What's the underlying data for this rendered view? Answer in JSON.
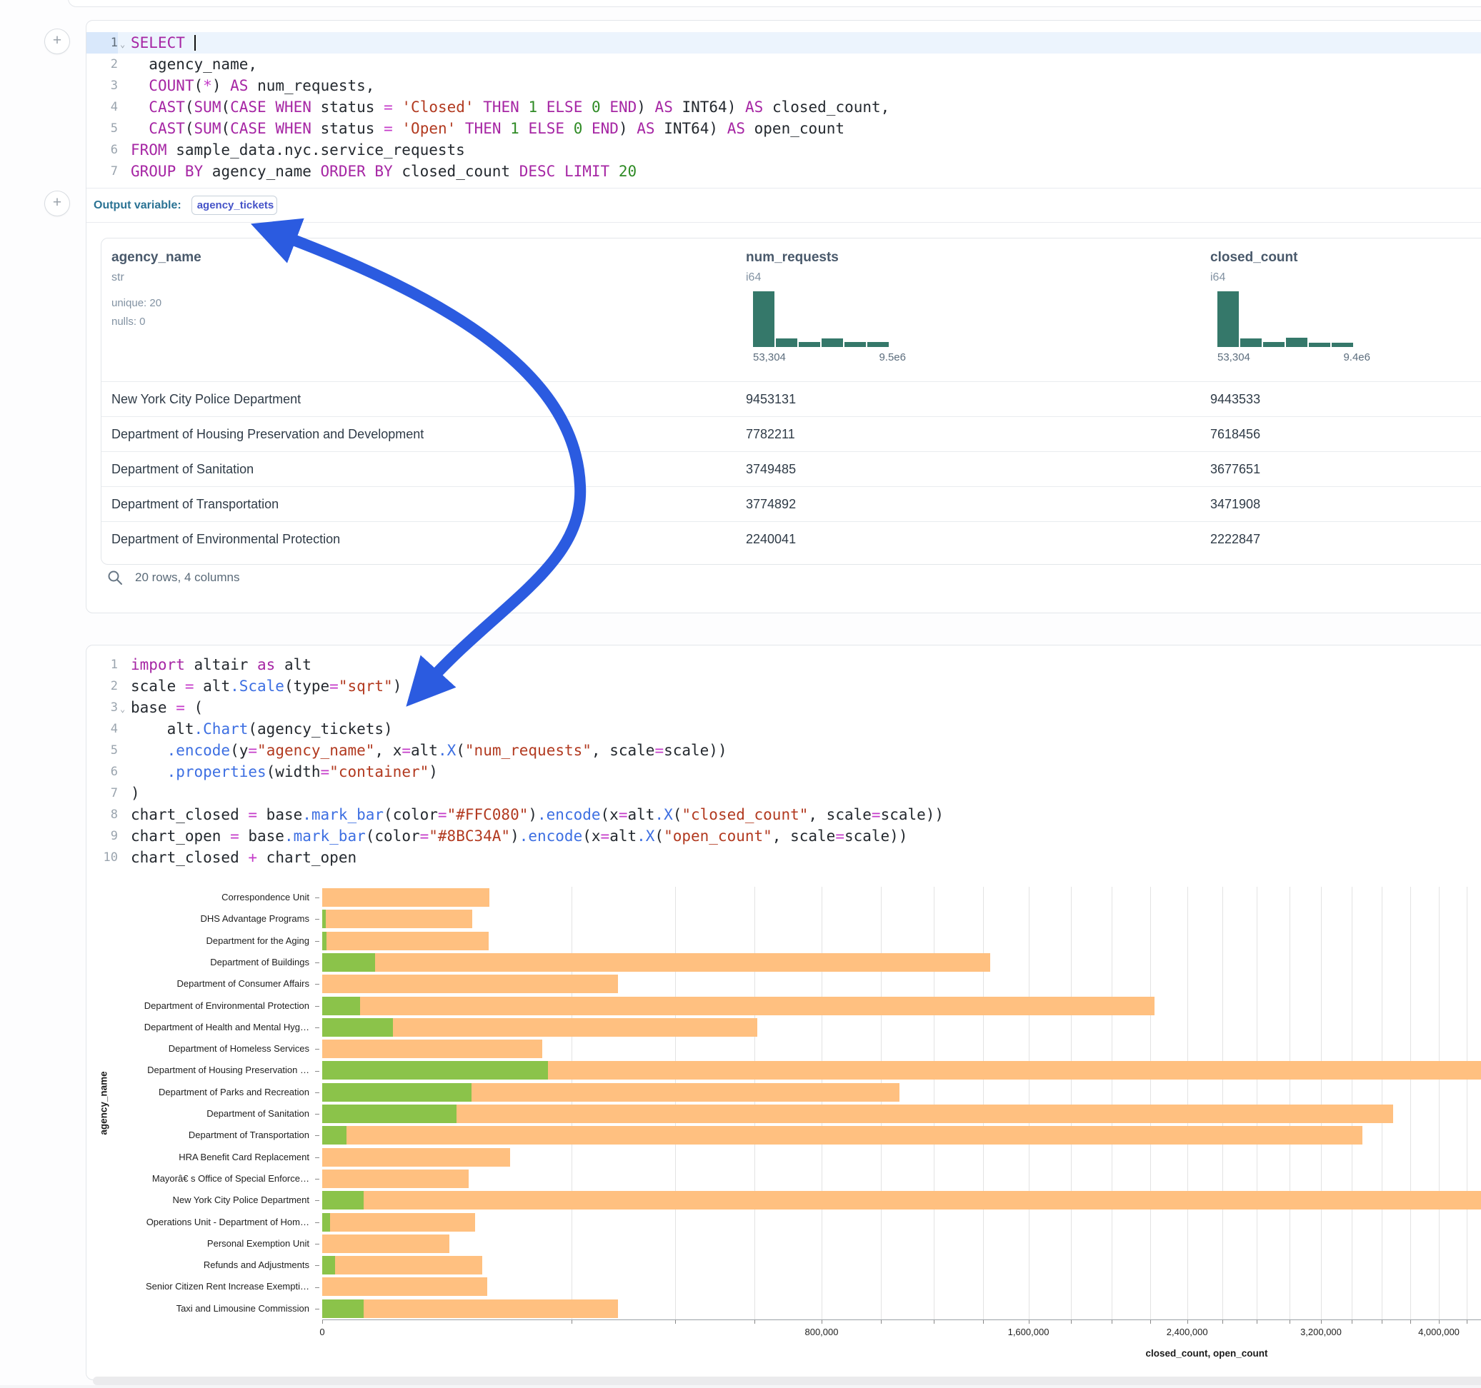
{
  "cell1": {
    "output_variable_label": "Output variable:",
    "output_variable_value": "agency_tickets",
    "sql_lines": [
      {
        "n": "1",
        "active": true,
        "fold": true,
        "caret": true,
        "tokens": [
          [
            "k",
            "SELECT"
          ],
          [
            "p",
            " "
          ]
        ]
      },
      {
        "n": "2",
        "tokens": [
          [
            "p",
            "  agency_name,"
          ]
        ]
      },
      {
        "n": "3",
        "tokens": [
          [
            "p",
            "  "
          ],
          [
            "k",
            "COUNT"
          ],
          [
            "p",
            "("
          ],
          [
            "o",
            "*"
          ],
          [
            "p",
            ") "
          ],
          [
            "k",
            "AS"
          ],
          [
            "p",
            " num_requests,"
          ]
        ]
      },
      {
        "n": "4",
        "tokens": [
          [
            "p",
            "  "
          ],
          [
            "k",
            "CAST"
          ],
          [
            "p",
            "("
          ],
          [
            "k",
            "SUM"
          ],
          [
            "p",
            "("
          ],
          [
            "k",
            "CASE"
          ],
          [
            "p",
            " "
          ],
          [
            "k",
            "WHEN"
          ],
          [
            "p",
            " status "
          ],
          [
            "o",
            "="
          ],
          [
            "p",
            " "
          ],
          [
            "s",
            "'Closed'"
          ],
          [
            "p",
            " "
          ],
          [
            "k",
            "THEN"
          ],
          [
            "p",
            " "
          ],
          [
            "n",
            "1"
          ],
          [
            "p",
            " "
          ],
          [
            "k",
            "ELSE"
          ],
          [
            "p",
            " "
          ],
          [
            "n",
            "0"
          ],
          [
            "p",
            " "
          ],
          [
            "k",
            "END"
          ],
          [
            "p",
            ") "
          ],
          [
            "k",
            "AS"
          ],
          [
            "p",
            " INT64) "
          ],
          [
            "k",
            "AS"
          ],
          [
            "p",
            " closed_count,"
          ]
        ]
      },
      {
        "n": "5",
        "tokens": [
          [
            "p",
            "  "
          ],
          [
            "k",
            "CAST"
          ],
          [
            "p",
            "("
          ],
          [
            "k",
            "SUM"
          ],
          [
            "p",
            "("
          ],
          [
            "k",
            "CASE"
          ],
          [
            "p",
            " "
          ],
          [
            "k",
            "WHEN"
          ],
          [
            "p",
            " status "
          ],
          [
            "o",
            "="
          ],
          [
            "p",
            " "
          ],
          [
            "s",
            "'Open'"
          ],
          [
            "p",
            " "
          ],
          [
            "k",
            "THEN"
          ],
          [
            "p",
            " "
          ],
          [
            "n",
            "1"
          ],
          [
            "p",
            " "
          ],
          [
            "k",
            "ELSE"
          ],
          [
            "p",
            " "
          ],
          [
            "n",
            "0"
          ],
          [
            "p",
            " "
          ],
          [
            "k",
            "END"
          ],
          [
            "p",
            ") "
          ],
          [
            "k",
            "AS"
          ],
          [
            "p",
            " INT64) "
          ],
          [
            "k",
            "AS"
          ],
          [
            "p",
            " open_count"
          ]
        ]
      },
      {
        "n": "6",
        "tokens": [
          [
            "k",
            "FROM"
          ],
          [
            "p",
            " sample_data.nyc.service_requests"
          ]
        ]
      },
      {
        "n": "7",
        "tokens": [
          [
            "k",
            "GROUP BY"
          ],
          [
            "p",
            " agency_name "
          ],
          [
            "k",
            "ORDER BY"
          ],
          [
            "p",
            " closed_count "
          ],
          [
            "k",
            "DESC"
          ],
          [
            "p",
            " "
          ],
          [
            "k",
            "LIMIT"
          ],
          [
            "p",
            " "
          ],
          [
            "n",
            "20"
          ]
        ]
      }
    ],
    "table": {
      "columns": [
        {
          "name": "agency_name",
          "type": "str",
          "meta": [
            "unique: 20",
            "nulls: 0"
          ]
        },
        {
          "name": "num_requests",
          "type": "i64",
          "hist": {
            "bins": [
              100,
              16,
              9,
              16,
              9,
              9
            ],
            "min_label": "53,304",
            "max_label": "9.5e6"
          }
        },
        {
          "name": "closed_count",
          "type": "i64",
          "hist": {
            "bins": [
              100,
              16,
              9,
              17,
              8,
              8
            ],
            "min_label": "53,304",
            "max_label": "9.4e6"
          }
        }
      ],
      "rows": [
        [
          "New York City Police Department",
          "9453131",
          "9443533"
        ],
        [
          "Department of Housing Preservation and Development",
          "7782211",
          "7618456"
        ],
        [
          "Department of Sanitation",
          "3749485",
          "3677651"
        ],
        [
          "Department of Transportation",
          "3774892",
          "3471908"
        ],
        [
          "Department of Environmental Protection",
          "2240041",
          "2222847"
        ]
      ],
      "footer": "20 rows, 4 columns"
    }
  },
  "cell2": {
    "py_lines": [
      {
        "n": "1",
        "tokens": [
          [
            "k",
            "import"
          ],
          [
            "p",
            " altair "
          ],
          [
            "k",
            "as"
          ],
          [
            "p",
            " alt"
          ]
        ]
      },
      {
        "n": "2",
        "tokens": [
          [
            "p",
            "scale "
          ],
          [
            "o",
            "="
          ],
          [
            "p",
            " alt"
          ],
          [
            "f",
            ".Scale"
          ],
          [
            "p",
            "(type"
          ],
          [
            "o",
            "="
          ],
          [
            "s",
            "\"sqrt\""
          ],
          [
            "p",
            ")"
          ]
        ]
      },
      {
        "n": "3",
        "fold": true,
        "tokens": [
          [
            "p",
            "base "
          ],
          [
            "o",
            "="
          ],
          [
            "p",
            " ("
          ]
        ]
      },
      {
        "n": "4",
        "tokens": [
          [
            "p",
            "    alt"
          ],
          [
            "f",
            ".Chart"
          ],
          [
            "p",
            "(agency_tickets)"
          ]
        ]
      },
      {
        "n": "5",
        "tokens": [
          [
            "p",
            "    "
          ],
          [
            "f",
            ".encode"
          ],
          [
            "p",
            "(y"
          ],
          [
            "o",
            "="
          ],
          [
            "s",
            "\"agency_name\""
          ],
          [
            "p",
            ", x"
          ],
          [
            "o",
            "="
          ],
          [
            "p",
            "alt"
          ],
          [
            "f",
            ".X"
          ],
          [
            "p",
            "("
          ],
          [
            "s",
            "\"num_requests\""
          ],
          [
            "p",
            ", scale"
          ],
          [
            "o",
            "="
          ],
          [
            "p",
            "scale))"
          ]
        ]
      },
      {
        "n": "6",
        "tokens": [
          [
            "p",
            "    "
          ],
          [
            "f",
            ".properties"
          ],
          [
            "p",
            "(width"
          ],
          [
            "o",
            "="
          ],
          [
            "s",
            "\"container\""
          ],
          [
            "p",
            ")"
          ]
        ]
      },
      {
        "n": "7",
        "tokens": [
          [
            "p",
            ")"
          ]
        ]
      },
      {
        "n": "8",
        "tokens": [
          [
            "p",
            "chart_closed "
          ],
          [
            "o",
            "="
          ],
          [
            "p",
            " base"
          ],
          [
            "f",
            ".mark_bar"
          ],
          [
            "p",
            "(color"
          ],
          [
            "o",
            "="
          ],
          [
            "s",
            "\"#FFC080\""
          ],
          [
            "p",
            ")"
          ],
          [
            "f",
            ".encode"
          ],
          [
            "p",
            "(x"
          ],
          [
            "o",
            "="
          ],
          [
            "p",
            "alt"
          ],
          [
            "f",
            ".X"
          ],
          [
            "p",
            "("
          ],
          [
            "s",
            "\"closed_count\""
          ],
          [
            "p",
            ", scale"
          ],
          [
            "o",
            "="
          ],
          [
            "p",
            "scale))"
          ]
        ]
      },
      {
        "n": "9",
        "tokens": [
          [
            "p",
            "chart_open "
          ],
          [
            "o",
            "="
          ],
          [
            "p",
            " base"
          ],
          [
            "f",
            ".mark_bar"
          ],
          [
            "p",
            "(color"
          ],
          [
            "o",
            "="
          ],
          [
            "s",
            "\"#8BC34A\""
          ],
          [
            "p",
            ")"
          ],
          [
            "f",
            ".encode"
          ],
          [
            "p",
            "(x"
          ],
          [
            "o",
            "="
          ],
          [
            "p",
            "alt"
          ],
          [
            "f",
            ".X"
          ],
          [
            "p",
            "("
          ],
          [
            "s",
            "\"open_count\""
          ],
          [
            "p",
            ", scale"
          ],
          [
            "o",
            "="
          ],
          [
            "p",
            "scale))"
          ]
        ]
      },
      {
        "n": "10",
        "tokens": [
          [
            "p",
            "chart_closed "
          ],
          [
            "o",
            "+"
          ],
          [
            "p",
            " chart_open"
          ]
        ]
      }
    ]
  },
  "chart_data": {
    "type": "bar",
    "orientation": "horizontal",
    "xlabel": "closed_count, open_count",
    "ylabel": "agency_name",
    "x_scale": "sqrt",
    "grid": true,
    "gridline_step": 200000,
    "x_ticks": [
      0,
      800000,
      1600000,
      2400000,
      3200000,
      4000000
    ],
    "x_tick_labels": [
      "0",
      "800,000",
      "1,600,000",
      "2,400,000",
      "3,200,000",
      "4,000,000"
    ],
    "x_visible_max": 4360000,
    "categories": [
      "Correspondence Unit",
      "DHS Advantage Programs",
      "Department for the Aging",
      "Department of Buildings",
      "Department of Consumer Affairs",
      "Department of Environmental Protection",
      "Department of Health and Mental Hyg…",
      "Department of Homeless Services",
      "Department of Housing Preservation …",
      "Department of Parks and Recreation",
      "Department of Sanitation",
      "Department of Transportation",
      "HRA Benefit Card Replacement",
      "Mayorâ€ s Office of Special Enforce…",
      "New York City Police Department",
      "Operations Unit - Department of Hom…",
      "Personal Exemption Unit",
      "Refunds and Adjustments",
      "Senior Citizen Rent Increase Exempti…",
      "Taxi and Limousine Commission"
    ],
    "series": [
      {
        "name": "closed_count",
        "color": "#FFC080",
        "values": [
          90000,
          72000,
          89000,
          1430000,
          281000,
          2222847,
          608000,
          155000,
          7618456,
          1070000,
          3677651,
          3471908,
          113000,
          69000,
          9443533,
          75000,
          52000,
          82000,
          87000,
          280000
        ]
      },
      {
        "name": "open_count",
        "color": "#8BC34A",
        "values": [
          0,
          40,
          60,
          9000,
          0,
          4600,
          16000,
          0,
          163755,
          71800,
          58000,
          1850,
          0,
          0,
          5500,
          190,
          0,
          540,
          0,
          5460
        ]
      }
    ]
  },
  "annotation": {
    "arrow_color": "#2B5BE0"
  },
  "histogram_color": "#35786A"
}
